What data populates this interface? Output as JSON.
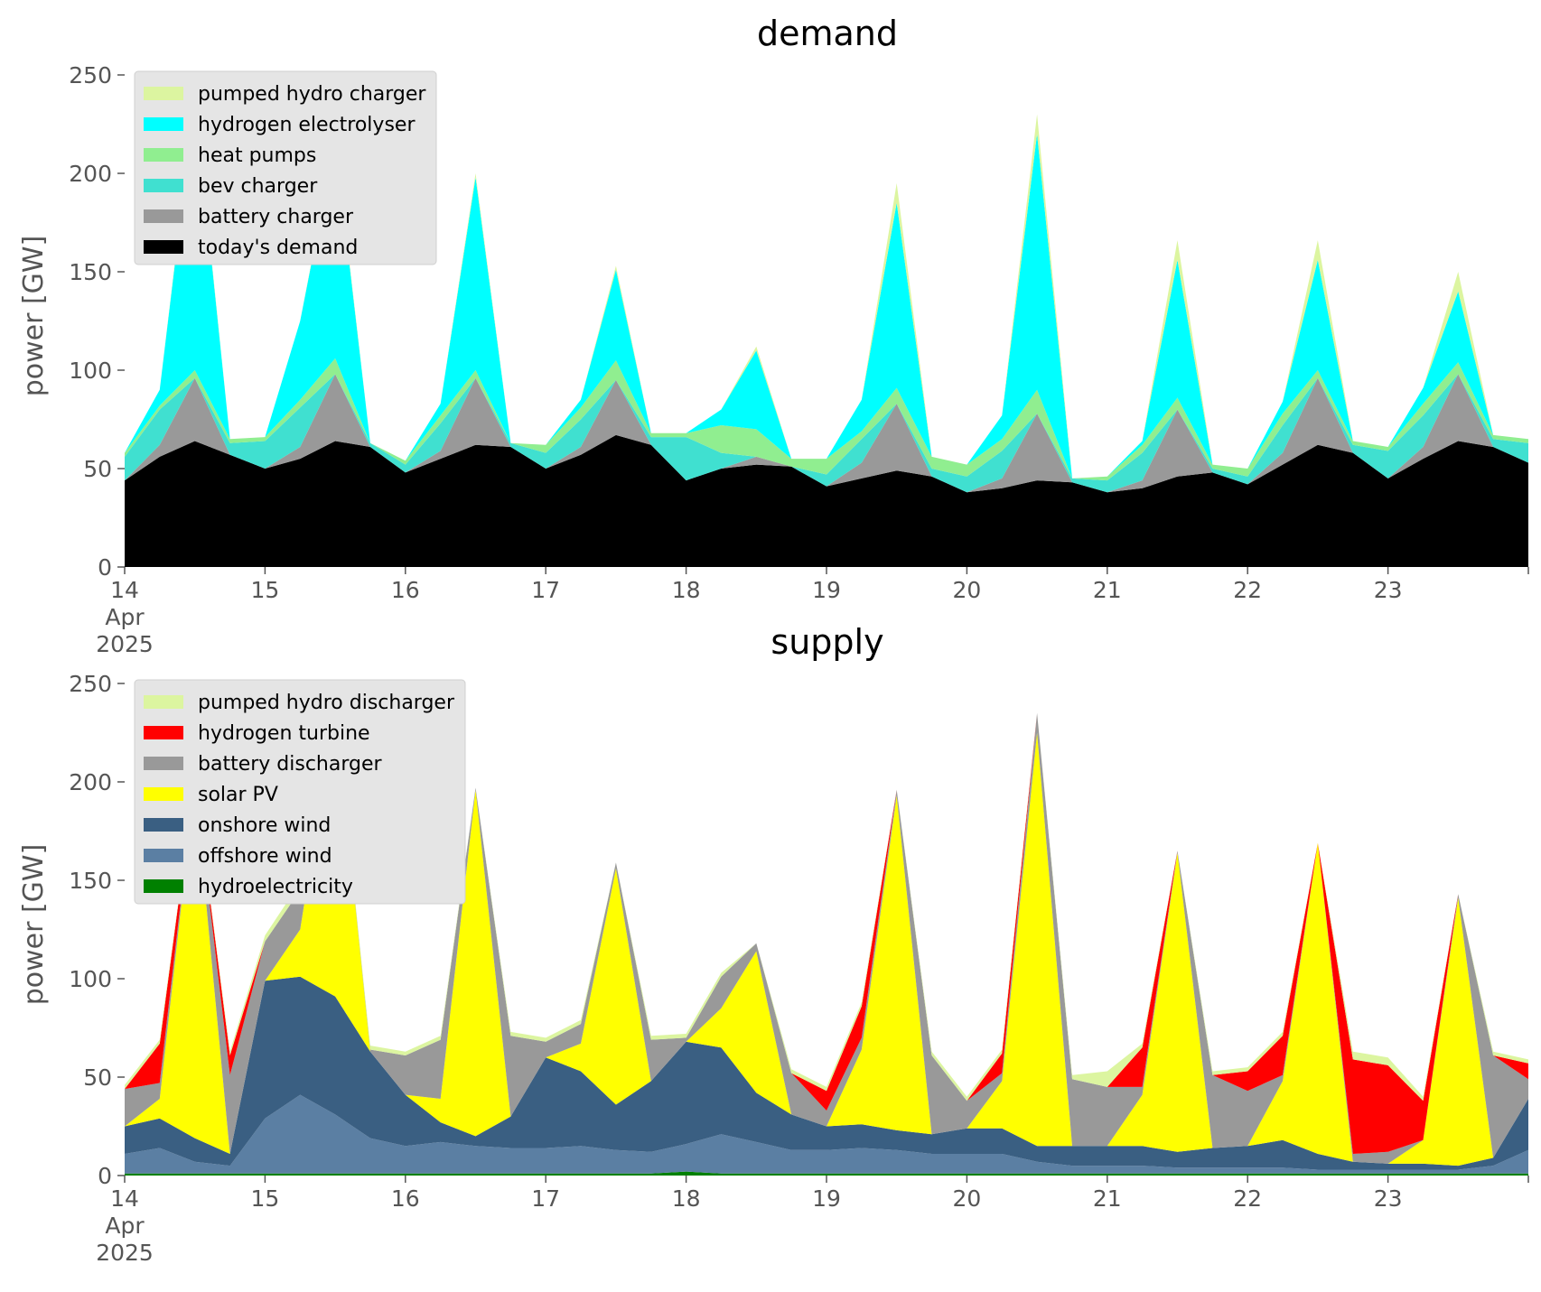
{
  "chart_data": [
    {
      "type": "area",
      "stacked": true,
      "title": "demand",
      "ylabel": "power [GW]",
      "ylim": [
        0,
        250
      ],
      "yticks": [
        0,
        50,
        100,
        150,
        200,
        250
      ],
      "xlim": [
        "2025-04-14",
        "2025-04-24"
      ],
      "xticks": [
        {
          "at": "2025-04-14",
          "lines": [
            "14",
            "Apr",
            "2025"
          ]
        },
        {
          "at": "2025-04-15",
          "lines": [
            "15"
          ]
        },
        {
          "at": "2025-04-16",
          "lines": [
            "16"
          ]
        },
        {
          "at": "2025-04-17",
          "lines": [
            "17"
          ]
        },
        {
          "at": "2025-04-18",
          "lines": [
            "18"
          ]
        },
        {
          "at": "2025-04-19",
          "lines": [
            "19"
          ]
        },
        {
          "at": "2025-04-20",
          "lines": [
            "20"
          ]
        },
        {
          "at": "2025-04-21",
          "lines": [
            "21"
          ]
        },
        {
          "at": "2025-04-22",
          "lines": [
            "22"
          ]
        },
        {
          "at": "2025-04-23",
          "lines": [
            "23"
          ]
        }
      ],
      "grid": false,
      "legend_position": "top-left",
      "x": [
        "2025-04-14T00:00",
        "2025-04-14T06:00",
        "2025-04-14T12:00",
        "2025-04-14T18:00",
        "2025-04-15T00:00",
        "2025-04-15T06:00",
        "2025-04-15T12:00",
        "2025-04-15T18:00",
        "2025-04-16T00:00",
        "2025-04-16T06:00",
        "2025-04-16T12:00",
        "2025-04-16T18:00",
        "2025-04-17T00:00",
        "2025-04-17T06:00",
        "2025-04-17T12:00",
        "2025-04-17T18:00",
        "2025-04-18T00:00",
        "2025-04-18T06:00",
        "2025-04-18T12:00",
        "2025-04-18T18:00",
        "2025-04-19T00:00",
        "2025-04-19T06:00",
        "2025-04-19T12:00",
        "2025-04-19T18:00",
        "2025-04-20T00:00",
        "2025-04-20T06:00",
        "2025-04-20T12:00",
        "2025-04-20T18:00",
        "2025-04-21T00:00",
        "2025-04-21T06:00",
        "2025-04-21T12:00",
        "2025-04-21T18:00",
        "2025-04-22T00:00",
        "2025-04-22T06:00",
        "2025-04-22T12:00",
        "2025-04-22T18:00",
        "2025-04-23T00:00",
        "2025-04-23T06:00",
        "2025-04-23T12:00",
        "2025-04-23T18:00",
        "2025-04-24T00:00"
      ],
      "series": [
        {
          "name": "today's demand",
          "color": "#000000",
          "values": [
            44,
            56,
            64,
            57,
            50,
            55,
            64,
            61,
            48,
            55,
            62,
            61,
            50,
            57,
            67,
            62,
            44,
            50,
            52,
            51,
            41,
            45,
            49,
            46,
            38,
            40,
            44,
            43,
            38,
            40,
            46,
            48,
            42,
            52,
            62,
            58,
            45,
            55,
            64,
            61,
            53
          ]
        },
        {
          "name": "battery charger",
          "color": "#999999",
          "values": [
            0,
            6,
            32,
            0,
            0,
            6,
            34,
            0,
            0,
            4,
            34,
            0,
            0,
            4,
            28,
            0,
            0,
            0,
            4,
            0,
            0,
            8,
            34,
            0,
            0,
            5,
            34,
            0,
            0,
            4,
            34,
            0,
            0,
            6,
            34,
            0,
            0,
            6,
            34,
            0,
            0
          ]
        },
        {
          "name": "bev charger",
          "color": "#40e0d0",
          "values": [
            12,
            18,
            0,
            6,
            14,
            20,
            0,
            2,
            4,
            14,
            0,
            2,
            8,
            14,
            0,
            4,
            22,
            8,
            0,
            0,
            6,
            12,
            0,
            4,
            8,
            14,
            0,
            2,
            6,
            14,
            0,
            2,
            4,
            14,
            0,
            4,
            14,
            16,
            0,
            4,
            10
          ]
        },
        {
          "name": "heat pumps",
          "color": "#90ee90",
          "values": [
            2,
            2,
            4,
            2,
            2,
            4,
            8,
            0,
            2,
            4,
            4,
            0,
            4,
            6,
            10,
            2,
            2,
            14,
            14,
            4,
            8,
            4,
            8,
            6,
            6,
            6,
            12,
            0,
            2,
            4,
            6,
            2,
            4,
            6,
            4,
            2,
            2,
            6,
            6,
            2,
            2
          ]
        },
        {
          "name": "hydrogen electrolyser",
          "color": "#00ffff",
          "values": [
            0,
            8,
            138,
            0,
            0,
            40,
            110,
            0,
            0,
            6,
            98,
            0,
            0,
            4,
            46,
            0,
            0,
            8,
            40,
            0,
            0,
            16,
            94,
            0,
            0,
            12,
            130,
            0,
            0,
            2,
            70,
            0,
            0,
            6,
            56,
            0,
            0,
            8,
            36,
            0,
            0
          ]
        },
        {
          "name": "pumped hydro charger",
          "color": "#dcf5a0",
          "values": [
            0,
            0,
            2,
            0,
            0,
            0,
            2,
            0,
            0,
            0,
            2,
            0,
            0,
            0,
            2,
            0,
            0,
            0,
            2,
            0,
            0,
            0,
            10,
            0,
            0,
            0,
            10,
            0,
            0,
            0,
            10,
            0,
            0,
            0,
            10,
            0,
            0,
            0,
            10,
            0,
            0
          ]
        }
      ],
      "legend": [
        "pumped hydro charger",
        "hydrogen electrolyser",
        "heat pumps",
        "bev charger",
        "battery charger",
        "today's demand"
      ]
    },
    {
      "type": "area",
      "stacked": true,
      "title": "supply",
      "ylabel": "power [GW]",
      "ylim": [
        0,
        250
      ],
      "yticks": [
        0,
        50,
        100,
        150,
        200,
        250
      ],
      "xlim": [
        "2025-04-14",
        "2025-04-24"
      ],
      "xticks": [
        {
          "at": "2025-04-14",
          "lines": [
            "14",
            "Apr",
            "2025"
          ]
        },
        {
          "at": "2025-04-15",
          "lines": [
            "15"
          ]
        },
        {
          "at": "2025-04-16",
          "lines": [
            "16"
          ]
        },
        {
          "at": "2025-04-17",
          "lines": [
            "17"
          ]
        },
        {
          "at": "2025-04-18",
          "lines": [
            "18"
          ]
        },
        {
          "at": "2025-04-19",
          "lines": [
            "19"
          ]
        },
        {
          "at": "2025-04-20",
          "lines": [
            "20"
          ]
        },
        {
          "at": "2025-04-21",
          "lines": [
            "21"
          ]
        },
        {
          "at": "2025-04-22",
          "lines": [
            "22"
          ]
        },
        {
          "at": "2025-04-23",
          "lines": [
            "23"
          ]
        }
      ],
      "grid": false,
      "legend_position": "top-left",
      "x": [
        "2025-04-14T00:00",
        "2025-04-14T06:00",
        "2025-04-14T12:00",
        "2025-04-14T18:00",
        "2025-04-15T00:00",
        "2025-04-15T06:00",
        "2025-04-15T12:00",
        "2025-04-15T18:00",
        "2025-04-16T00:00",
        "2025-04-16T06:00",
        "2025-04-16T12:00",
        "2025-04-16T18:00",
        "2025-04-17T00:00",
        "2025-04-17T06:00",
        "2025-04-17T12:00",
        "2025-04-17T18:00",
        "2025-04-18T00:00",
        "2025-04-18T06:00",
        "2025-04-18T12:00",
        "2025-04-18T18:00",
        "2025-04-19T00:00",
        "2025-04-19T06:00",
        "2025-04-19T12:00",
        "2025-04-19T18:00",
        "2025-04-20T00:00",
        "2025-04-20T06:00",
        "2025-04-20T12:00",
        "2025-04-20T18:00",
        "2025-04-21T00:00",
        "2025-04-21T06:00",
        "2025-04-21T12:00",
        "2025-04-21T18:00",
        "2025-04-22T00:00",
        "2025-04-22T06:00",
        "2025-04-22T12:00",
        "2025-04-22T18:00",
        "2025-04-23T00:00",
        "2025-04-23T06:00",
        "2025-04-23T12:00",
        "2025-04-23T18:00",
        "2025-04-24T00:00"
      ],
      "series": [
        {
          "name": "hydroelectricity",
          "color": "#008000",
          "values": [
            1,
            1,
            1,
            1,
            1,
            1,
            1,
            1,
            1,
            1,
            1,
            1,
            1,
            1,
            1,
            1,
            2,
            1,
            1,
            1,
            1,
            1,
            1,
            1,
            1,
            1,
            1,
            1,
            1,
            1,
            1,
            1,
            1,
            1,
            1,
            1,
            1,
            1,
            1,
            1,
            1
          ]
        },
        {
          "name": "offshore wind",
          "color": "#5b7fa3",
          "values": [
            10,
            13,
            6,
            4,
            28,
            40,
            30,
            18,
            14,
            16,
            14,
            13,
            13,
            14,
            12,
            11,
            14,
            20,
            16,
            12,
            12,
            13,
            12,
            10,
            10,
            10,
            6,
            4,
            4,
            4,
            3,
            3,
            3,
            3,
            2,
            2,
            2,
            2,
            2,
            4,
            12
          ]
        },
        {
          "name": "onshore wind",
          "color": "#3a5f82",
          "values": [
            14,
            15,
            12,
            6,
            70,
            60,
            60,
            44,
            26,
            10,
            5,
            16,
            46,
            38,
            23,
            36,
            52,
            44,
            25,
            18,
            12,
            12,
            10,
            10,
            13,
            13,
            8,
            10,
            10,
            10,
            8,
            10,
            11,
            14,
            8,
            4,
            3,
            3,
            2,
            4,
            26
          ]
        },
        {
          "name": "solar PV",
          "color": "#ffff00",
          "values": [
            0,
            10,
            180,
            0,
            0,
            24,
            146,
            0,
            0,
            12,
            176,
            0,
            0,
            14,
            120,
            0,
            0,
            20,
            72,
            0,
            0,
            38,
            170,
            0,
            0,
            24,
            210,
            0,
            0,
            26,
            152,
            0,
            0,
            30,
            158,
            0,
            0,
            12,
            136,
            0,
            0
          ]
        },
        {
          "name": "battery discharger",
          "color": "#999999",
          "values": [
            19,
            8,
            2,
            40,
            20,
            20,
            1,
            1,
            20,
            30,
            1,
            41,
            8,
            10,
            3,
            21,
            2,
            16,
            4,
            21,
            8,
            6,
            3,
            40,
            14,
            4,
            10,
            34,
            30,
            4,
            1,
            37,
            28,
            3,
            0,
            4,
            6,
            0,
            2,
            52,
            10
          ]
        },
        {
          "name": "hydrogen turbine",
          "color": "#ff0000",
          "values": [
            0,
            20,
            0,
            10,
            0,
            0,
            0,
            0,
            0,
            0,
            0,
            0,
            0,
            0,
            0,
            0,
            0,
            0,
            0,
            0,
            10,
            16,
            0,
            0,
            0,
            10,
            0,
            0,
            0,
            20,
            0,
            0,
            10,
            20,
            0,
            48,
            44,
            20,
            0,
            0,
            8
          ]
        },
        {
          "name": "pumped hydro discharger",
          "color": "#dcf5a0",
          "values": [
            2,
            2,
            0,
            2,
            3,
            4,
            0,
            2,
            2,
            2,
            0,
            2,
            2,
            2,
            0,
            2,
            2,
            2,
            0,
            2,
            2,
            2,
            0,
            2,
            2,
            2,
            0,
            2,
            8,
            2,
            0,
            2,
            2,
            2,
            0,
            4,
            4,
            2,
            0,
            2,
            2
          ]
        }
      ],
      "legend": [
        "pumped hydro discharger",
        "hydrogen turbine",
        "battery discharger",
        "solar PV",
        "onshore wind",
        "offshore wind",
        "hydroelectricity"
      ]
    }
  ]
}
